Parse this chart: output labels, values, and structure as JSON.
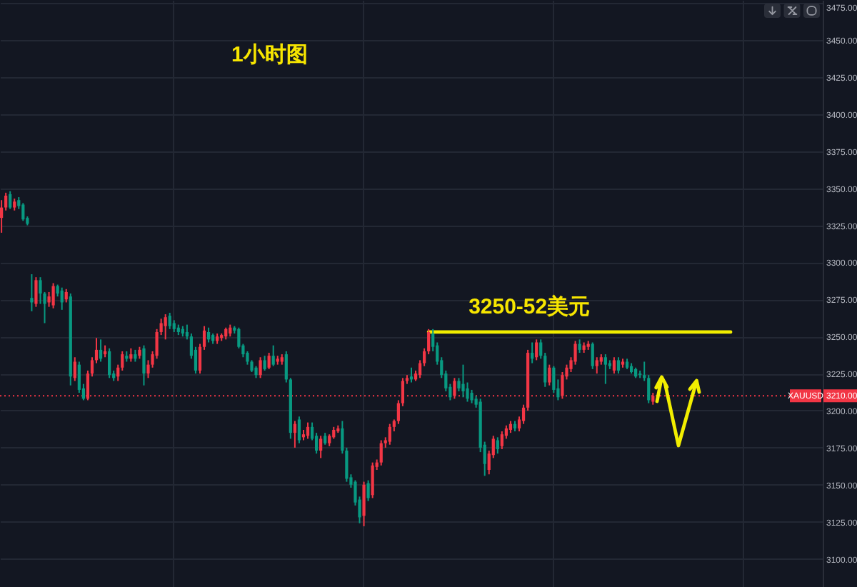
{
  "chart_data": {
    "type": "candlestick",
    "title": "1小时图",
    "categories": [
      null,
      null,
      null,
      null,
      null,
      null,
      null,
      null,
      null,
      null,
      null,
      null,
      null,
      null,
      null,
      null,
      null,
      null,
      null,
      null,
      null,
      null,
      null,
      null,
      null,
      null,
      null,
      null,
      null,
      null,
      null,
      null,
      null,
      null,
      null,
      null,
      null,
      null,
      null,
      null,
      null,
      null,
      null,
      null,
      null,
      null,
      null,
      null,
      null,
      null,
      null,
      null,
      null,
      null,
      null,
      null,
      null,
      null,
      null,
      null,
      null,
      null,
      null,
      null,
      null,
      null,
      null,
      null,
      null,
      null,
      null,
      null,
      null,
      null,
      null,
      null,
      null,
      null,
      null,
      null,
      null,
      null,
      null,
      null,
      null,
      null,
      null,
      null,
      null,
      null,
      null,
      null,
      null,
      null,
      null,
      null,
      null,
      null,
      null,
      null,
      null,
      null,
      null,
      null,
      null,
      null,
      null,
      null,
      null,
      null,
      null,
      null,
      null,
      null,
      null,
      null,
      null,
      null,
      null,
      null,
      null,
      null,
      null,
      null,
      null,
      null,
      null,
      null,
      null,
      null,
      null,
      null,
      null,
      null,
      null,
      null,
      null,
      null,
      null,
      null,
      null,
      null,
      null,
      null,
      null,
      null,
      null,
      null,
      null,
      null,
      null,
      null,
      null,
      null,
      null,
      null,
      null,
      null,
      null,
      null,
      null,
      null,
      null,
      null,
      null,
      null,
      null,
      null,
      null,
      null,
      null,
      null,
      null,
      null,
      null,
      null,
      null,
      null,
      null,
      null,
      null,
      null,
      null,
      null,
      null,
      null,
      null,
      null,
      null,
      null,
      null
    ],
    "ohlc": [
      [
        3330,
        3342,
        3320,
        3337
      ],
      [
        3337,
        3347,
        3335,
        3345
      ],
      [
        3346,
        3348,
        3336,
        3337
      ],
      [
        3337,
        3343,
        3335,
        3341
      ],
      [
        3342,
        3344,
        3336,
        3338
      ],
      [
        3339,
        3340,
        3328,
        3329
      ],
      [
        3330,
        3331,
        3325,
        3326
      ],
      [
        3276,
        3292,
        3267,
        3273
      ],
      [
        3272,
        3290,
        3270,
        3288
      ],
      [
        3288,
        3290,
        3272,
        3279
      ],
      [
        3279,
        3280,
        3259,
        3272
      ],
      [
        3273,
        3280,
        3270,
        3277
      ],
      [
        3271,
        3286,
        3269,
        3284
      ],
      [
        3284,
        3285,
        3277,
        3279
      ],
      [
        3281,
        3283,
        3268,
        3273
      ],
      [
        3275,
        3282,
        3273,
        3280
      ],
      [
        3277,
        3279,
        3217,
        3223
      ],
      [
        3222,
        3236,
        3220,
        3233
      ],
      [
        3231,
        3233,
        3212,
        3214
      ],
      [
        3215,
        3218,
        3207,
        3208
      ],
      [
        3208,
        3227,
        3207,
        3225
      ],
      [
        3225,
        3236,
        3223,
        3234
      ],
      [
        3234,
        3249,
        3232,
        3241
      ],
      [
        3241,
        3248,
        3233,
        3235
      ],
      [
        3238,
        3244,
        3236,
        3240
      ],
      [
        3240,
        3242,
        3222,
        3224
      ],
      [
        3225,
        3227,
        3220,
        3222
      ],
      [
        3223,
        3231,
        3220,
        3229
      ],
      [
        3229,
        3240,
        3227,
        3238
      ],
      [
        3237,
        3240,
        3233,
        3235
      ],
      [
        3235,
        3242,
        3233,
        3238
      ],
      [
        3238,
        3241,
        3233,
        3235
      ],
      [
        3237,
        3243,
        3235,
        3241
      ],
      [
        3242,
        3244,
        3217,
        3225
      ],
      [
        3225,
        3234,
        3222,
        3231
      ],
      [
        3231,
        3240,
        3229,
        3238
      ],
      [
        3237,
        3255,
        3235,
        3253
      ],
      [
        3253,
        3262,
        3251,
        3259
      ],
      [
        3257,
        3265,
        3248,
        3263
      ],
      [
        3264,
        3266,
        3255,
        3257
      ],
      [
        3259,
        3261,
        3253,
        3255
      ],
      [
        3256,
        3258,
        3251,
        3253
      ],
      [
        3255,
        3257,
        3250,
        3252
      ],
      [
        3253,
        3258,
        3248,
        3250
      ],
      [
        3250,
        3252,
        3235,
        3237
      ],
      [
        3241,
        3243,
        3225,
        3227
      ],
      [
        3227,
        3245,
        3225,
        3243
      ],
      [
        3243,
        3257,
        3241,
        3254
      ],
      [
        3253,
        3256,
        3246,
        3248
      ],
      [
        3251,
        3252,
        3245,
        3247
      ],
      [
        3247,
        3252,
        3245,
        3250
      ],
      [
        3249,
        3252,
        3247,
        3251
      ],
      [
        3250,
        3256,
        3248,
        3255
      ],
      [
        3252,
        3258,
        3250,
        3256
      ],
      [
        3256,
        3257,
        3252,
        3254
      ],
      [
        3255,
        3256,
        3242,
        3243
      ],
      [
        3244,
        3245,
        3236,
        3238
      ],
      [
        3239,
        3240,
        3231,
        3233
      ],
      [
        3233,
        3234,
        3226,
        3227
      ],
      [
        3229,
        3230,
        3222,
        3224
      ],
      [
        3224,
        3236,
        3222,
        3234
      ],
      [
        3234,
        3237,
        3227,
        3228
      ],
      [
        3229,
        3239,
        3228,
        3237
      ],
      [
        3237,
        3244,
        3230,
        3231
      ],
      [
        3233,
        3237,
        3231,
        3235
      ],
      [
        3233,
        3238,
        3231,
        3236
      ],
      [
        3238,
        3240,
        3219,
        3221
      ],
      [
        3221,
        3222,
        3181,
        3185
      ],
      [
        3185,
        3193,
        3175,
        3191
      ],
      [
        3194,
        3196,
        3178,
        3180
      ],
      [
        3182,
        3187,
        3180,
        3184
      ],
      [
        3183,
        3192,
        3181,
        3189
      ],
      [
        3189,
        3192,
        3180,
        3181
      ],
      [
        3183,
        3185,
        3171,
        3173
      ],
      [
        3173,
        3183,
        3168,
        3181
      ],
      [
        3183,
        3185,
        3177,
        3178
      ],
      [
        3178,
        3184,
        3176,
        3183
      ],
      [
        3182,
        3189,
        3181,
        3187
      ],
      [
        3186,
        3190,
        3185,
        3188
      ],
      [
        3188,
        3193,
        3171,
        3173
      ],
      [
        3173,
        3175,
        3152,
        3154
      ],
      [
        3155,
        3157,
        3148,
        3150
      ],
      [
        3152,
        3153,
        3136,
        3138
      ],
      [
        3140,
        3142,
        3124,
        3128
      ],
      [
        3129,
        3152,
        3122,
        3150
      ],
      [
        3151,
        3153,
        3139,
        3141
      ],
      [
        3143,
        3165,
        3141,
        3163
      ],
      [
        3162,
        3167,
        3160,
        3165
      ],
      [
        3165,
        3180,
        3163,
        3178
      ],
      [
        3178,
        3182,
        3175,
        3180
      ],
      [
        3179,
        3191,
        3177,
        3189
      ],
      [
        3189,
        3194,
        3186,
        3193
      ],
      [
        3193,
        3207,
        3191,
        3205
      ],
      [
        3205,
        3222,
        3203,
        3220
      ],
      [
        3220,
        3224,
        3218,
        3222
      ],
      [
        3223,
        3229,
        3219,
        3221
      ],
      [
        3221,
        3227,
        3220,
        3225
      ],
      [
        3224,
        3234,
        3222,
        3232
      ],
      [
        3232,
        3242,
        3230,
        3240
      ],
      [
        3240,
        3255,
        3238,
        3253
      ],
      [
        3252,
        3255,
        3240,
        3243
      ],
      [
        3244,
        3246,
        3231,
        3233
      ],
      [
        3234,
        3236,
        3222,
        3224
      ],
      [
        3225,
        3227,
        3213,
        3215
      ],
      [
        3216,
        3218,
        3207,
        3209
      ],
      [
        3210,
        3222,
        3208,
        3220
      ],
      [
        3220,
        3222,
        3213,
        3215
      ],
      [
        3218,
        3231,
        3209,
        3213
      ],
      [
        3215,
        3219,
        3206,
        3208
      ],
      [
        3212,
        3214,
        3205,
        3207
      ],
      [
        3208,
        3210,
        3202,
        3204
      ],
      [
        3206,
        3208,
        3172,
        3175
      ],
      [
        3177,
        3179,
        3156,
        3164
      ],
      [
        3160,
        3173,
        3157,
        3171
      ],
      [
        3170,
        3183,
        3168,
        3181
      ],
      [
        3180,
        3182,
        3171,
        3174
      ],
      [
        3176,
        3186,
        3174,
        3184
      ],
      [
        3183,
        3190,
        3181,
        3188
      ],
      [
        3187,
        3193,
        3185,
        3191
      ],
      [
        3191,
        3193,
        3186,
        3188
      ],
      [
        3188,
        3196,
        3186,
        3194
      ],
      [
        3193,
        3204,
        3191,
        3202
      ],
      [
        3202,
        3241,
        3200,
        3239
      ],
      [
        3239,
        3246,
        3232,
        3235
      ],
      [
        3236,
        3248,
        3234,
        3246
      ],
      [
        3246,
        3248,
        3235,
        3237
      ],
      [
        3237,
        3239,
        3216,
        3219
      ],
      [
        3219,
        3231,
        3217,
        3229
      ],
      [
        3229,
        3230,
        3212,
        3214
      ],
      [
        3215,
        3221,
        3207,
        3209
      ],
      [
        3210,
        3226,
        3208,
        3224
      ],
      [
        3223,
        3231,
        3221,
        3229
      ],
      [
        3228,
        3236,
        3226,
        3234
      ],
      [
        3233,
        3247,
        3231,
        3245
      ],
      [
        3245,
        3248,
        3239,
        3241
      ],
      [
        3241,
        3246,
        3239,
        3244
      ],
      [
        3243,
        3247,
        3241,
        3245
      ],
      [
        3245,
        3246,
        3228,
        3230
      ],
      [
        3230,
        3236,
        3225,
        3234
      ],
      [
        3233,
        3238,
        3231,
        3236
      ],
      [
        3236,
        3238,
        3218,
        3231
      ],
      [
        3232,
        3234,
        3228,
        3230
      ],
      [
        3227,
        3236,
        3225,
        3234
      ],
      [
        3234,
        3236,
        3225,
        3227
      ],
      [
        3231,
        3235,
        3229,
        3233
      ],
      [
        3233,
        3235,
        3228,
        3229
      ],
      [
        3230,
        3232,
        3225,
        3226
      ],
      [
        3228,
        3229,
        3222,
        3223
      ],
      [
        3225,
        3227,
        3222,
        3224
      ],
      [
        3224,
        3233,
        3220,
        3222
      ],
      [
        3222,
        3224,
        3205,
        3207
      ],
      [
        3206,
        3212,
        3204,
        3210
      ],
      null,
      null,
      null,
      null,
      null,
      null,
      null,
      null,
      null,
      null,
      null,
      null,
      null,
      null,
      null,
      null,
      null,
      null,
      null,
      null,
      null,
      null,
      null,
      null,
      null,
      null,
      null,
      null,
      null,
      null,
      null,
      null,
      null,
      null,
      null,
      null,
      null,
      null,
      null
    ],
    "colors": [
      "#f23645",
      "#f23645",
      "#089981",
      "#f23645",
      "#089981",
      "#089981",
      "#089981",
      "#089981",
      "#f23645",
      "#089981",
      "#089981",
      "#f23645",
      "#f23645",
      "#089981",
      "#089981",
      "#f23645",
      "#089981",
      "#f23645",
      "#089981",
      "#089981",
      "#f23645",
      "#f23645",
      "#f23645",
      "#089981",
      "#f23645",
      "#089981",
      "#089981",
      "#f23645",
      "#f23645",
      "#089981",
      "#f23645",
      "#089981",
      "#f23645",
      "#089981",
      "#f23645",
      "#f23645",
      "#f23645",
      "#f23645",
      "#f23645",
      "#089981",
      "#089981",
      "#089981",
      "#089981",
      "#089981",
      "#089981",
      "#089981",
      "#f23645",
      "#f23645",
      "#089981",
      "#089981",
      "#f23645",
      "#f23645",
      "#f23645",
      "#f23645",
      "#089981",
      "#089981",
      "#089981",
      "#089981",
      "#089981",
      "#089981",
      "#f23645",
      "#089981",
      "#f23645",
      "#089981",
      "#f23645",
      "#f23645",
      "#089981",
      "#089981",
      "#f23645",
      "#089981",
      "#f23645",
      "#f23645",
      "#089981",
      "#089981",
      "#f23645",
      "#089981",
      "#f23645",
      "#f23645",
      "#f23645",
      "#089981",
      "#089981",
      "#089981",
      "#089981",
      "#089981",
      "#f23645",
      "#089981",
      "#f23645",
      "#f23645",
      "#f23645",
      "#f23645",
      "#f23645",
      "#f23645",
      "#f23645",
      "#f23645",
      "#f23645",
      "#089981",
      "#f23645",
      "#f23645",
      "#f23645",
      "#f23645",
      "#089981",
      "#089981",
      "#089981",
      "#089981",
      "#089981",
      "#f23645",
      "#089981",
      "#089981",
      "#089981",
      "#089981",
      "#089981",
      "#089981",
      "#089981",
      "#f23645",
      "#f23645",
      "#089981",
      "#f23645",
      "#f23645",
      "#f23645",
      "#089981",
      "#f23645",
      "#f23645",
      "#f23645",
      "#089981",
      "#f23645",
      "#089981",
      "#089981",
      "#f23645",
      "#089981",
      "#089981",
      "#f23645",
      "#f23645",
      "#f23645",
      "#f23645",
      "#089981",
      "#f23645",
      "#f23645",
      "#089981",
      "#f23645",
      "#f23645",
      "#089981",
      "#089981",
      "#f23645",
      "#089981",
      "#f23645",
      "#089981",
      "#089981",
      "#089981",
      "#089981",
      "#089981",
      "#089981",
      "#f23645",
      null,
      null,
      null,
      null,
      null,
      null,
      null,
      null,
      null,
      null,
      null,
      null,
      null,
      null,
      null,
      null,
      null,
      null,
      null,
      null,
      null,
      null,
      null,
      null,
      null,
      null,
      null,
      null,
      null,
      null,
      null,
      null,
      null,
      null,
      null,
      null,
      null,
      null,
      null
    ],
    "series": [
      {
        "type": "line",
        "color": "#f2ee00",
        "values": [
          null,
          null,
          null,
          null,
          null,
          null,
          null,
          null,
          null,
          null,
          null,
          null,
          null,
          null,
          null,
          null,
          null,
          null,
          null,
          null,
          null,
          null,
          null,
          null,
          null,
          null,
          null,
          null,
          null,
          null,
          null,
          null,
          null,
          null,
          null,
          null,
          null,
          null,
          null,
          null,
          null,
          null,
          null,
          null,
          null,
          null,
          null,
          null,
          null,
          null,
          null,
          null,
          null,
          null,
          null,
          null,
          null,
          null,
          null,
          null,
          null,
          null,
          null,
          null,
          null,
          null,
          null,
          null,
          null,
          null,
          null,
          null,
          null,
          null,
          null,
          null,
          null,
          null,
          null,
          null,
          null,
          null,
          null,
          null,
          null,
          null,
          null,
          null,
          null,
          null,
          null,
          null,
          null,
          null,
          null,
          null,
          null,
          null,
          null,
          3253,
          3253,
          3253,
          3253,
          3253,
          3253,
          3253,
          3253,
          3253,
          3253,
          3253,
          3253,
          3253,
          3253,
          3253,
          3253,
          3253,
          3253,
          3253,
          3253,
          3253,
          3253,
          3253,
          3253,
          3253,
          3253,
          3253,
          3253,
          3253,
          3253,
          3253,
          3253,
          3253,
          3253,
          3253,
          3253,
          3253,
          3253,
          3253,
          3253,
          3253,
          3253,
          3253,
          3253,
          3253,
          3253,
          3253,
          3253,
          3253,
          3253,
          3253,
          3253,
          3253,
          3253,
          3253,
          3253,
          3253,
          3253,
          3253,
          3253,
          3253,
          3253,
          3253,
          3253,
          3253,
          3253,
          3253,
          3253,
          3253,
          3253,
          3253,
          null,
          null,
          null,
          null,
          null,
          null,
          null,
          null,
          null,
          null,
          null,
          null,
          null,
          null,
          null,
          null,
          null,
          null,
          null,
          null,
          null
        ]
      }
    ],
    "ylim": [
      3081,
      3477
    ],
    "yticks": [
      {
        "value": 3100,
        "label": "3100.00"
      },
      {
        "value": 3125,
        "label": "3125.00"
      },
      {
        "value": 3150,
        "label": "3150.00"
      },
      {
        "value": 3175,
        "label": "3175.00"
      },
      {
        "value": 3200,
        "label": "3200.00"
      },
      {
        "value": 3225,
        "label": "3225.00"
      },
      {
        "value": 3250,
        "label": "3250.00"
      },
      {
        "value": 3275,
        "label": "3275.00"
      },
      {
        "value": 3300,
        "label": "3300.00"
      },
      {
        "value": 3325,
        "label": "3325.00"
      },
      {
        "value": 3350,
        "label": "3350.00"
      },
      {
        "value": 3375,
        "label": "3375.00"
      },
      {
        "value": 3400,
        "label": "3400.00"
      },
      {
        "value": 3425,
        "label": "3425.00"
      },
      {
        "value": 3450,
        "label": "3450.00"
      },
      {
        "value": 3475,
        "label": "3475.00"
      }
    ],
    "grid": true,
    "ref_lines": [
      {
        "axis": "y",
        "value": 3210,
        "label": "XAUUSD",
        "color": "#f23645",
        "line_style": "dotted"
      }
    ],
    "annotations": [
      {
        "text": "3250-52美元",
        "y": 3253
      },
      {
        "text": "3210.00",
        "y": 3210
      }
    ]
  }
}
